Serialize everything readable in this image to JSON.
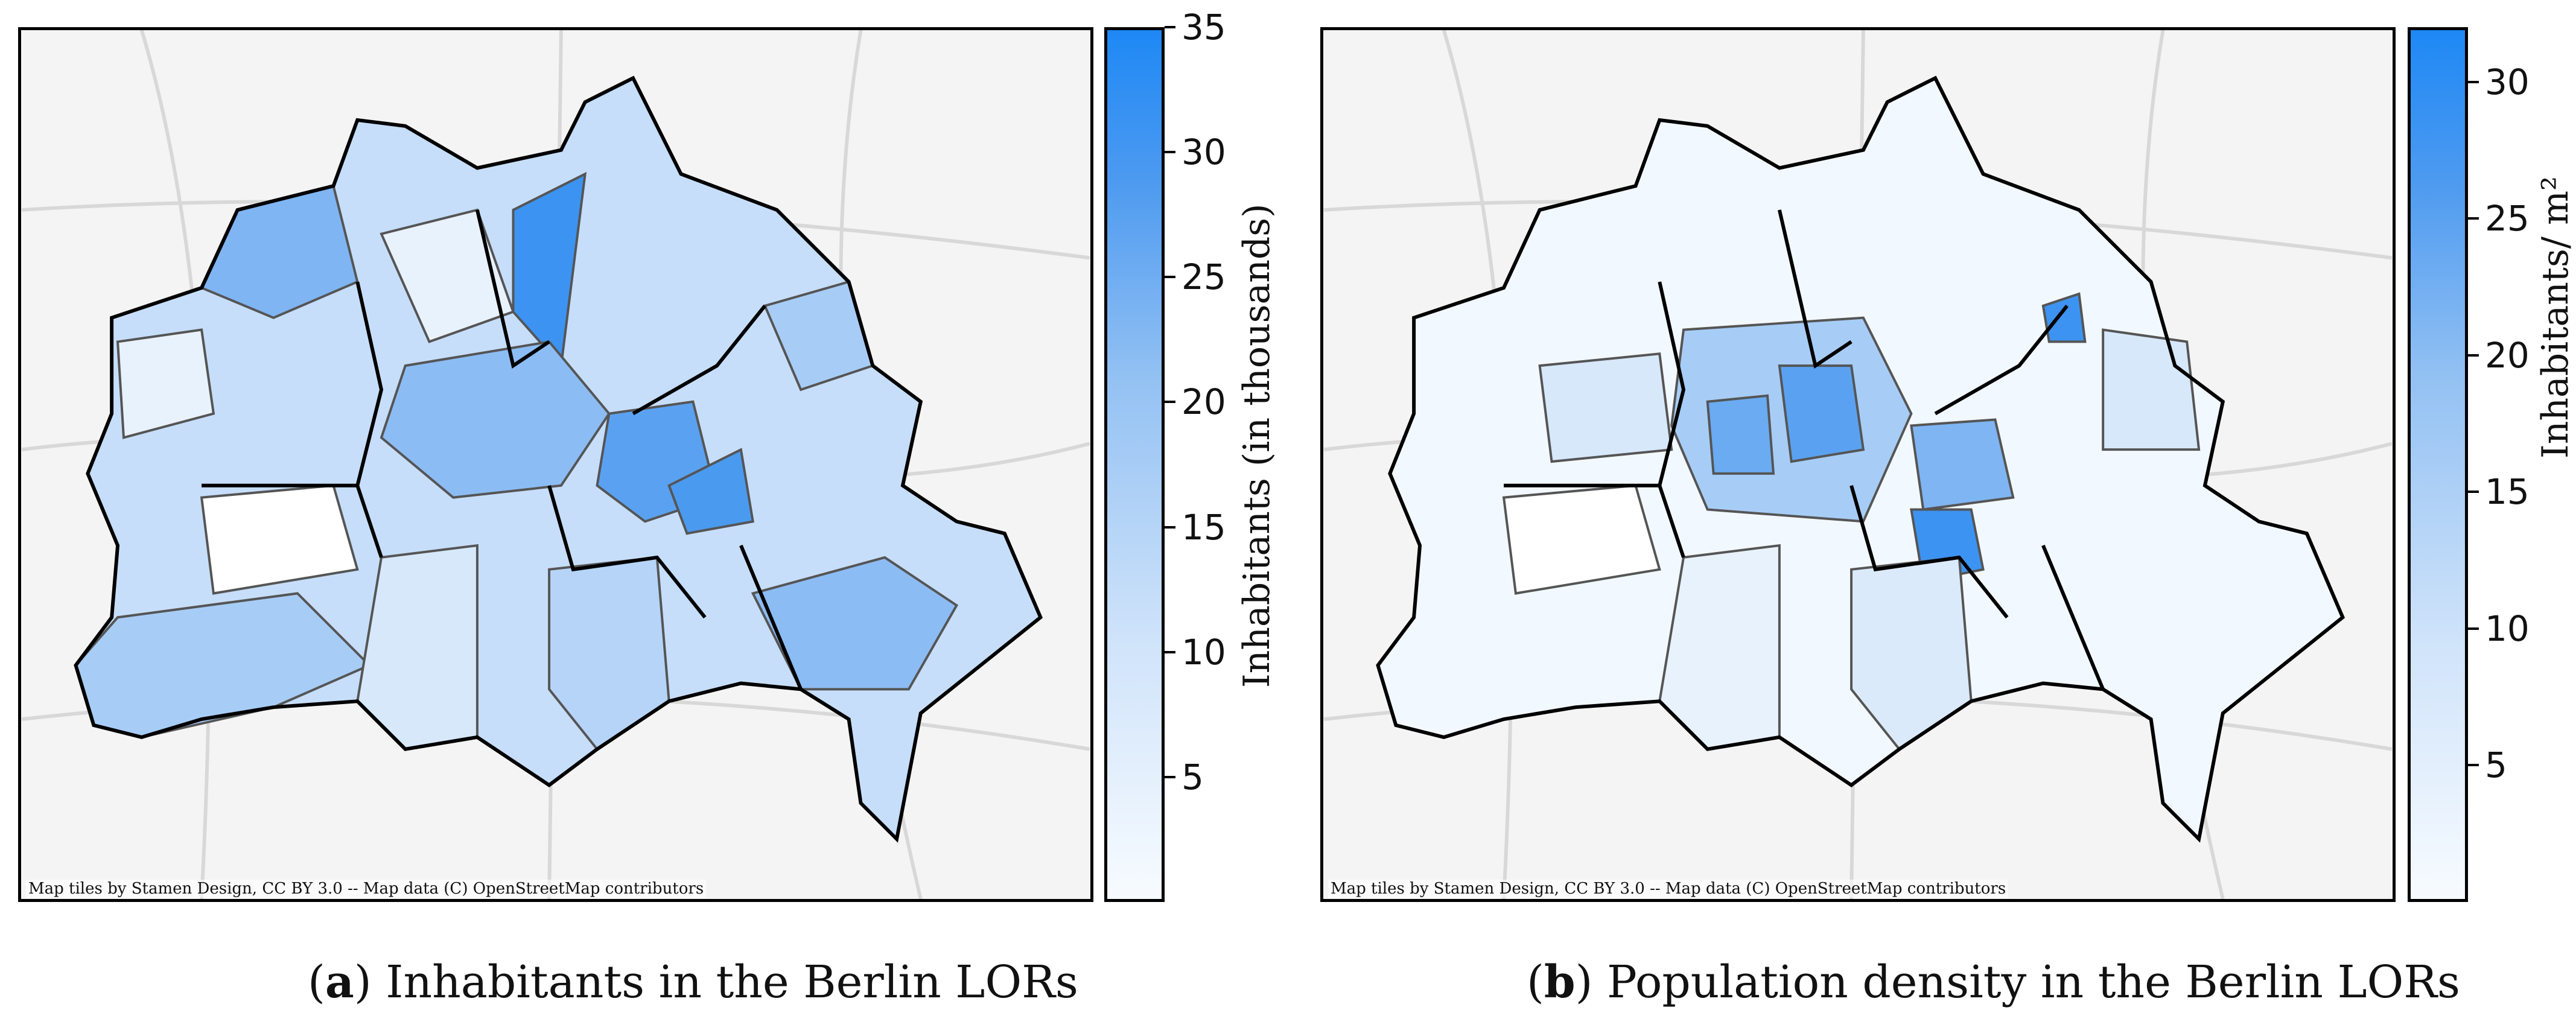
{
  "panels": [
    {
      "id": "a",
      "attribution": "Map tiles by Stamen Design, CC BY 3.0 -- Map data (C) OpenStreetMap contributors",
      "colorbar": {
        "title": "Inhabitants (in thousands)",
        "ticks": [
          "35",
          "30",
          "25",
          "20",
          "15",
          "10",
          "5"
        ],
        "tick_values": [
          35,
          30,
          25,
          20,
          15,
          10,
          5
        ],
        "range": [
          0,
          35
        ],
        "colors": [
          "#f7fbff",
          "#1e88f5"
        ]
      },
      "caption": {
        "letter": "a",
        "text": " Inhabitants in the Berlin LORs"
      }
    },
    {
      "id": "b",
      "attribution": "Map tiles by Stamen Design, CC BY 3.0 -- Map data (C) OpenStreetMap contributors",
      "colorbar": {
        "title": "Inhabitants/ m²",
        "ticks": [
          "30",
          "25",
          "20",
          "15",
          "10",
          "5"
        ],
        "tick_values": [
          30,
          25,
          20,
          15,
          10,
          5
        ],
        "range": [
          0,
          32
        ],
        "colors": [
          "#f7fbff",
          "#1e88f5"
        ]
      },
      "caption": {
        "letter": "b",
        "text": " Population density in the Berlin LORs"
      }
    }
  ]
}
